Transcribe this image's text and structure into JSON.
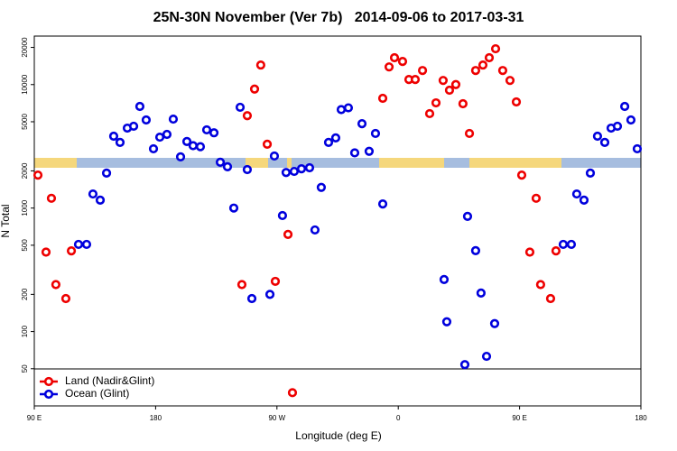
{
  "chart_data": {
    "type": "scatter",
    "title": "25N-30N November (Ver 7b)   2014-09-06 to 2017-03-31",
    "xlabel": "Longitude (deg E)",
    "ylabel": "N Total",
    "xlim": [
      90,
      540
    ],
    "ylim": [
      25,
      24700
    ],
    "log_y": true,
    "legend": "bottom-left",
    "xticks": [
      {
        "value": 90,
        "label": "90 E"
      },
      180,
      {
        "value": 270,
        "label": "90 W"
      },
      {
        "value": 360,
        "label": "0"
      },
      {
        "value": 450,
        "label": "90 E"
      },
      {
        "value": 540,
        "label": "180"
      }
    ],
    "yticks": [
      50,
      100,
      200,
      500,
      1000,
      2000,
      5000,
      10000,
      20000
    ],
    "series": [
      {
        "name": "Land (Nadir&Glint)",
        "color": "#ee0000",
        "x": [
          92.7,
          98.7,
          102.7,
          106,
          113.4,
          117.5,
          244,
          248,
          253.4,
          258,
          262.8,
          268.8,
          278.2,
          281.5,
          348.5,
          353.2,
          357.2,
          363.2,
          367.9,
          372.6,
          378,
          383.3,
          388,
          393.3,
          398,
          402.7,
          408,
          412.8,
          417.4,
          422.8,
          427.5,
          432.2,
          437.5,
          442.9,
          447.6,
          451.6,
          457.6,
          462.3,
          465.6,
          473,
          477
        ],
        "values": [
          1850,
          440,
          1200,
          240,
          185,
          450,
          240,
          5600,
          9200,
          14400,
          3290,
          255,
          612,
          32,
          7740,
          13900,
          16500,
          15400,
          11000,
          11000,
          13000,
          5820,
          7110,
          10800,
          9000,
          10000,
          7000,
          4020,
          13000,
          14400,
          16500,
          19500,
          13000,
          10800,
          7240,
          1850,
          440,
          1200,
          240,
          185,
          450
        ]
      },
      {
        "name": "Ocean (Glint)",
        "color": "#0000dd",
        "x": [
          122.8,
          128.8,
          133.5,
          138.9,
          143.6,
          148.9,
          153.6,
          159,
          163.7,
          168.3,
          173,
          178.4,
          183.1,
          188.4,
          193.1,
          198.5,
          203.2,
          207.8,
          213.2,
          217.9,
          223.3,
          228,
          233.3,
          238,
          242.7,
          248,
          251.4,
          264.8,
          268.1,
          274.1,
          276.8,
          282.8,
          288.2,
          294.2,
          298.2,
          302.9,
          308.3,
          313.6,
          317.7,
          323,
          327.7,
          333.1,
          338.4,
          343.1,
          348.5,
          394,
          396,
          409.4,
          411.4,
          417.4,
          421.4,
          425.5,
          431.5,
          482.4,
          488.4,
          492.4,
          497.8,
          502.5,
          507.8,
          513.2,
          517.9,
          522.6,
          528,
          532.6,
          537.3
        ],
        "values": [
          508,
          508,
          1300,
          1160,
          1920,
          3820,
          3400,
          4440,
          4600,
          6650,
          5170,
          3020,
          3750,
          3950,
          5250,
          2600,
          3460,
          3200,
          3140,
          4300,
          4070,
          2350,
          2160,
          1000,
          6550,
          2050,
          185,
          200,
          2640,
          870,
          1940,
          1980,
          2080,
          2120,
          665,
          1470,
          3400,
          3700,
          6270,
          6480,
          2800,
          4820,
          2880,
          4020,
          1080,
          264,
          120,
          54,
          857,
          452,
          205,
          63,
          116,
          508,
          508,
          1300,
          1160,
          1920,
          3820,
          3400,
          4440,
          4600,
          6650,
          5170,
          3020
        ]
      }
    ]
  }
}
